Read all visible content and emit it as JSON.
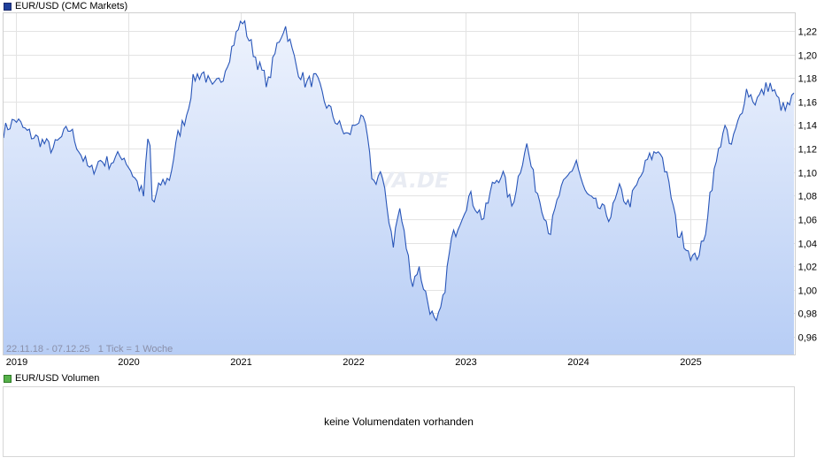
{
  "price_panel": {
    "legend_label": "EUR/USD (CMC Markets)",
    "info": "22.11.18 - 07.12.25   1 Tick = 1 Woche",
    "watermark": "ARIVA.DE"
  },
  "volume_panel": {
    "legend_label": "EUR/USD Volumen",
    "message": "keine Volumendaten vorhanden"
  },
  "chart_data": {
    "type": "area",
    "series": [
      {
        "x": [
          "2018-11-22",
          "2019-01-01",
          "2019-02-01",
          "2019-03-01",
          "2019-04-01",
          "2019-05-01",
          "2019-06-01",
          "2019-06-25",
          "2019-08-01",
          "2019-09-01",
          "2019-10-01",
          "2019-11-01",
          "2019-12-15",
          "2020-02-20",
          "2020-03-09",
          "2020-03-20",
          "2020-04-15",
          "2020-05-15",
          "2020-06-10",
          "2020-07-10",
          "2020-08-01",
          "2020-09-01",
          "2020-10-01",
          "2020-11-01",
          "2020-12-15",
          "2021-01-06",
          "2021-02-01",
          "2021-03-01",
          "2021-03-31",
          "2021-05-01",
          "2021-05-25",
          "2021-07-01",
          "2021-08-01",
          "2021-09-01",
          "2021-10-01",
          "2021-11-15",
          "2021-12-15",
          "2022-01-15",
          "2022-02-10",
          "2022-03-07",
          "2022-04-01",
          "2022-05-12",
          "2022-06-01",
          "2022-07-14",
          "2022-08-01",
          "2022-09-01",
          "2022-09-28",
          "2022-10-20",
          "2022-11-15",
          "2022-12-15",
          "2023-01-15",
          "2023-03-01",
          "2023-04-01",
          "2023-05-01",
          "2023-05-31",
          "2023-07-18",
          "2023-08-15",
          "2023-09-15",
          "2023-10-03",
          "2023-11-01",
          "2023-12-28",
          "2024-01-20",
          "2024-02-15",
          "2024-04-16",
          "2024-05-15",
          "2024-06-15",
          "2024-07-15",
          "2024-08-15",
          "2024-09-25",
          "2024-10-31",
          "2024-11-20",
          "2024-12-15",
          "2025-01-13",
          "2025-02-15",
          "2025-03-05",
          "2025-04-21",
          "2025-05-12",
          "2025-06-15",
          "2025-07-01",
          "2025-08-01",
          "2025-09-15",
          "2025-10-15",
          "2025-11-05",
          "2025-12-07"
        ],
        "values": [
          1.135,
          1.145,
          1.135,
          1.13,
          1.125,
          1.12,
          1.13,
          1.138,
          1.115,
          1.1,
          1.11,
          1.108,
          1.115,
          1.08,
          1.14,
          1.07,
          1.09,
          1.095,
          1.13,
          1.15,
          1.18,
          1.185,
          1.17,
          1.18,
          1.215,
          1.23,
          1.21,
          1.19,
          1.175,
          1.21,
          1.225,
          1.19,
          1.175,
          1.18,
          1.16,
          1.14,
          1.13,
          1.145,
          1.14,
          1.09,
          1.1,
          1.04,
          1.07,
          1.005,
          1.02,
          0.99,
          0.968,
          0.99,
          1.04,
          1.06,
          1.08,
          1.06,
          1.09,
          1.1,
          1.07,
          1.125,
          1.09,
          1.065,
          1.048,
          1.08,
          1.11,
          1.085,
          1.075,
          1.062,
          1.085,
          1.072,
          1.09,
          1.11,
          1.12,
          1.08,
          1.05,
          1.04,
          1.025,
          1.04,
          1.08,
          1.14,
          1.12,
          1.15,
          1.17,
          1.16,
          1.175,
          1.16,
          1.152,
          1.165
        ]
      }
    ],
    "yticks": [
      "1,22",
      "1,20",
      "1,18",
      "1,16",
      "1,14",
      "1,12",
      "1,10",
      "1,08",
      "1,06",
      "1,04",
      "1,02",
      "1,00",
      "0,98",
      "0,96"
    ],
    "xticks": [
      "2019",
      "2020",
      "2021",
      "2022",
      "2023",
      "2024",
      "2025"
    ],
    "ylim": [
      0.945,
      1.235
    ],
    "xlim": [
      "2018-11-22",
      "2025-12-07"
    ],
    "grid": true,
    "colors": {
      "line": "#2855b8",
      "fill_top": "#eef3fd",
      "fill_bottom": "#b7cdf5",
      "grid": "#e3e3e3"
    }
  }
}
